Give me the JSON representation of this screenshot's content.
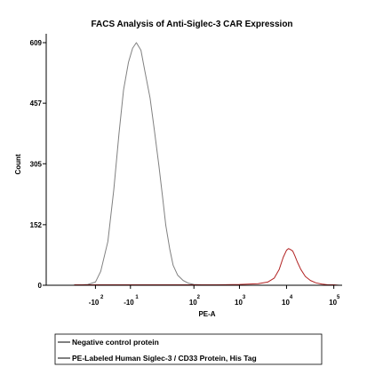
{
  "chart_data": {
    "type": "line",
    "title": "FACS Analysis of Anti-Siglec-3 CAR Expression",
    "xlabel": "PE-A",
    "ylabel": "Count",
    "x_scale": "biexponential",
    "xlim": [
      -1200,
      150000
    ],
    "ylim": [
      0,
      609
    ],
    "y_ticks": [
      0,
      152,
      305,
      457,
      609
    ],
    "x_ticks": [
      {
        "value": -100,
        "base": "-10",
        "exp": "2"
      },
      {
        "value": -10,
        "base": "-10",
        "exp": "1"
      },
      {
        "value": 100,
        "base": "10",
        "exp": "2"
      },
      {
        "value": 1000,
        "base": "10",
        "exp": "3"
      },
      {
        "value": 10000,
        "base": "10",
        "exp": "4"
      },
      {
        "value": 100000,
        "base": "10",
        "exp": "5"
      }
    ],
    "grid": false,
    "legend_position": "bottom",
    "series": [
      {
        "name": "Negative control protein",
        "color": "#808080",
        "x": [
          -300,
          -150,
          -100,
          -75,
          -50,
          -35,
          -25,
          -18,
          -12,
          -8,
          -5,
          -2,
          0,
          3,
          6,
          10,
          14,
          18,
          24,
          30,
          40,
          55,
          75,
          100,
          150,
          250
        ],
        "y": [
          0,
          2,
          8,
          35,
          110,
          240,
          380,
          490,
          560,
          595,
          609,
          590,
          540,
          470,
          390,
          300,
          220,
          150,
          90,
          50,
          25,
          12,
          5,
          2,
          1,
          0
        ]
      },
      {
        "name": "PE-Labeled Human Siglec-3 / CD33 Protein, His Tag",
        "color": "#b22222",
        "x": [
          -300,
          300,
          1000,
          2500,
          4000,
          5500,
          7000,
          8500,
          10000,
          11000,
          12000,
          13500,
          15000,
          17000,
          20000,
          25000,
          32000,
          42000,
          55000,
          75000,
          100000,
          130000
        ],
        "y": [
          1,
          1,
          2,
          4,
          8,
          18,
          40,
          70,
          88,
          92,
          90,
          86,
          74,
          58,
          40,
          22,
          12,
          6,
          3,
          1,
          1,
          0
        ]
      }
    ]
  }
}
